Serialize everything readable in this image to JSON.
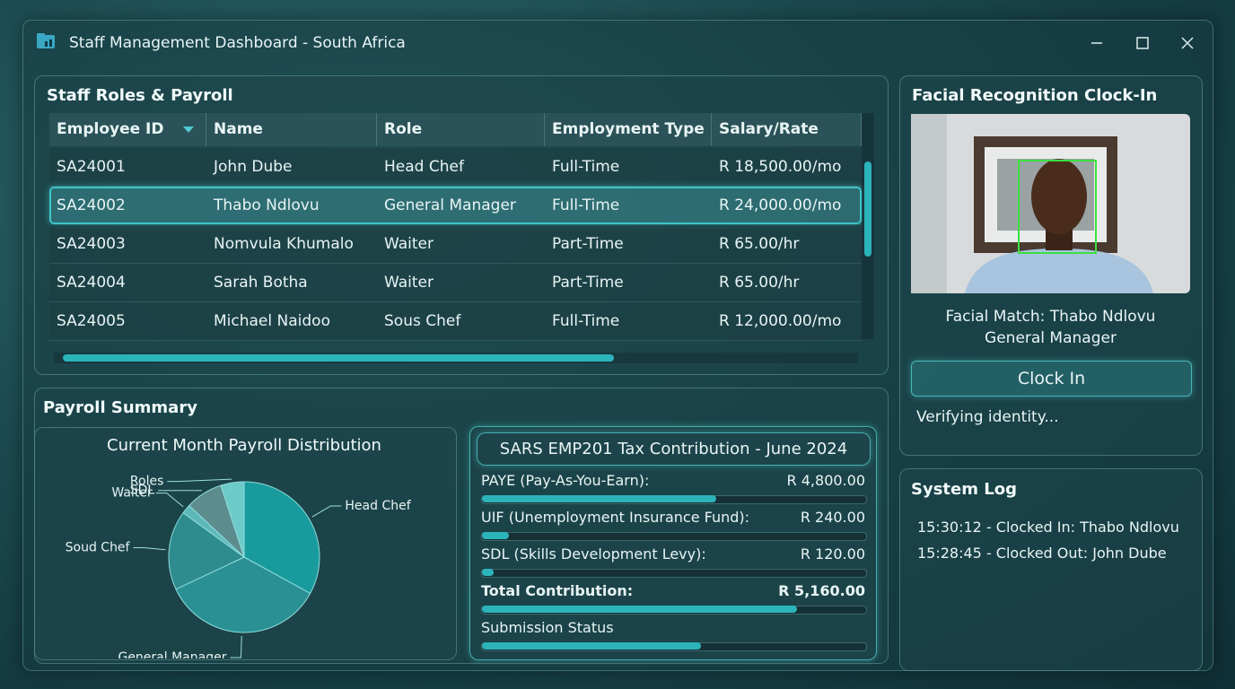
{
  "window": {
    "title": "Staff Management Dashboard - South Africa"
  },
  "staff_table": {
    "title": "Staff Roles & Payroll",
    "columns": [
      "Employee ID",
      "Name",
      "Role",
      "Employment Type",
      "Salary/Rate"
    ],
    "rows": [
      [
        "SA24001",
        "John Dube",
        "Head Chef",
        "Full-Time",
        "R 18,500.00/mo"
      ],
      [
        "SA24002",
        "Thabo Ndlovu",
        "General Manager",
        "Full-Time",
        "R 24,000.00/mo"
      ],
      [
        "SA24003",
        "Nomvula Khumalo",
        "Waiter",
        "Part-Time",
        "R 65.00/hr"
      ],
      [
        "SA24004",
        "Sarah Botha",
        "Waiter",
        "Part-Time",
        "R 65.00/hr"
      ],
      [
        "SA24005",
        "Michael Naidoo",
        "Sous Chef",
        "Full-Time",
        "R 12,000.00/mo"
      ]
    ],
    "selected_row": 1
  },
  "payroll_summary": {
    "title": "Payroll Summary"
  },
  "chart_data": {
    "type": "pie",
    "title": "Current Month Payroll Distribution",
    "categories": [
      "Head Chef",
      "General Manager",
      "Soud Chef",
      "Waiter",
      "SDL",
      "Roles"
    ],
    "values": [
      33,
      35,
      17,
      2,
      8,
      5
    ],
    "colors": [
      "#199b9d",
      "#2a9094",
      "#2e8b8e",
      "#5fb8b8",
      "#5d8c8e",
      "#6ccac8"
    ]
  },
  "tax": {
    "title": "SARS EMP201 Tax Contribution - June 2024",
    "items": [
      {
        "label": "PAYE (Pay-As-You-Earn):",
        "amount": "R 4,800.00",
        "progress": 61
      },
      {
        "label": "UIF (Unemployment Insurance Fund):",
        "amount": "R 240.00",
        "progress": 7
      },
      {
        "label": "SDL (Skills Development Levy):",
        "amount": "R 120.00",
        "progress": 3
      },
      {
        "label": "Total Contribution:",
        "amount": "R 5,160.00",
        "progress": 82
      }
    ],
    "status": {
      "label": "Submission Status",
      "progress": 57
    }
  },
  "clock_in": {
    "title": "Facial Recognition Clock-In",
    "match": "Facial Match: Thabo Ndlovu",
    "role": "General Manager",
    "button": "Clock In",
    "status": "Verifying identity..."
  },
  "system_log": {
    "title": "System Log",
    "entries": [
      "15:30:12 - Clocked In: Thabo Ndlovu",
      "15:28:45 - Clocked Out: John Dube"
    ]
  }
}
